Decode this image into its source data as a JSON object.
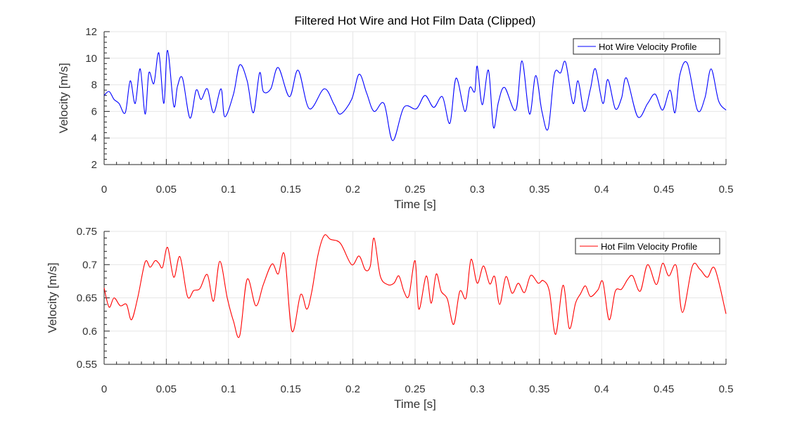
{
  "figure": {
    "title": "Filtered Hot Wire and Hot Film Data (Clipped)"
  },
  "chart_data": [
    {
      "type": "line",
      "title": "Filtered Hot Wire and Hot Film Data (Clipped)",
      "xlabel": "Time [s]",
      "ylabel": "Velocity [m/s]",
      "xlim": [
        0,
        0.5
      ],
      "ylim": [
        2,
        12
      ],
      "xticks": [
        0,
        0.05,
        0.1,
        0.15,
        0.2,
        0.25,
        0.3,
        0.35,
        0.4,
        0.45,
        0.5
      ],
      "xtick_labels": [
        "0",
        "0.05",
        "0.1",
        "0.15",
        "0.2",
        "0.25",
        "0.3",
        "0.35",
        "0.4",
        "0.45",
        "0.5"
      ],
      "yticks": [
        2,
        4,
        6,
        8,
        10,
        12
      ],
      "ytick_labels": [
        "2",
        "4",
        "6",
        "8",
        "10",
        "12"
      ],
      "grid": true,
      "legend_position": "top-right",
      "series": [
        {
          "name": "Hot Wire Velocity Profile",
          "color": "#0000ff",
          "x": [
            0,
            0.004,
            0.008,
            0.012,
            0.017,
            0.021,
            0.025,
            0.029,
            0.033,
            0.036,
            0.04,
            0.044,
            0.048,
            0.051,
            0.056,
            0.059,
            0.063,
            0.069,
            0.074,
            0.078,
            0.083,
            0.088,
            0.094,
            0.097,
            0.104,
            0.109,
            0.115,
            0.12,
            0.125,
            0.128,
            0.134,
            0.14,
            0.149,
            0.156,
            0.165,
            0.177,
            0.185,
            0.19,
            0.199,
            0.205,
            0.211,
            0.217,
            0.225,
            0.232,
            0.241,
            0.251,
            0.258,
            0.265,
            0.272,
            0.278,
            0.283,
            0.29,
            0.294,
            0.298,
            0.3,
            0.304,
            0.309,
            0.313,
            0.317,
            0.322,
            0.331,
            0.336,
            0.342,
            0.347,
            0.352,
            0.357,
            0.362,
            0.367,
            0.371,
            0.377,
            0.381,
            0.386,
            0.391,
            0.395,
            0.401,
            0.405,
            0.411,
            0.416,
            0.42,
            0.429,
            0.437,
            0.443,
            0.449,
            0.455,
            0.459,
            0.463,
            0.469,
            0.477,
            0.483,
            0.488,
            0.494,
            0.5
          ],
          "y": [
            7.2,
            7.5,
            6.9,
            6.6,
            5.9,
            8.3,
            6.6,
            9.2,
            5.8,
            8.9,
            8.1,
            10.4,
            6.6,
            10.6,
            6.4,
            7.9,
            8.5,
            5.5,
            7.6,
            6.9,
            7.7,
            5.9,
            7.7,
            5.6,
            7.3,
            9.5,
            8.3,
            5.9,
            8.9,
            7.5,
            7.7,
            9.3,
            7.1,
            9.1,
            6.2,
            7.7,
            6.5,
            5.8,
            6.9,
            8.8,
            7.4,
            6.0,
            6.6,
            3.8,
            6.3,
            6.2,
            7.2,
            6.3,
            7.1,
            5.1,
            8.5,
            6.0,
            7.8,
            7.5,
            9.4,
            6.5,
            9.1,
            4.8,
            6.7,
            7.8,
            6.1,
            9.8,
            5.8,
            8.7,
            6.0,
            4.7,
            8.8,
            8.9,
            9.7,
            6.6,
            8.3,
            6.0,
            7.7,
            9.2,
            6.6,
            8.4,
            6.2,
            7.0,
            8.5,
            5.6,
            6.6,
            7.3,
            6.1,
            7.6,
            5.9,
            8.8,
            9.6,
            6.1,
            7.0,
            9.2,
            6.8,
            6.1
          ],
          "x_order_note": ""
        }
      ]
    },
    {
      "type": "line",
      "title": "",
      "xlabel": "Time [s]",
      "ylabel": "Velocity [m/s]",
      "xlim": [
        0,
        0.5
      ],
      "ylim": [
        0.55,
        0.75
      ],
      "xticks": [
        0,
        0.05,
        0.1,
        0.15,
        0.2,
        0.25,
        0.3,
        0.35,
        0.4,
        0.45,
        0.5
      ],
      "xtick_labels": [
        "0",
        "0.05",
        "0.1",
        "0.15",
        "0.2",
        "0.25",
        "0.3",
        "0.35",
        "0.4",
        "0.45",
        "0.5"
      ],
      "yticks": [
        0.55,
        0.6,
        0.65,
        0.7,
        0.75
      ],
      "ytick_labels": [
        "0.55",
        "0.6",
        "0.65",
        "0.7",
        "0.75"
      ],
      "grid": true,
      "legend_position": "top-right",
      "series": [
        {
          "name": "Hot Film Velocity Profile",
          "color": "#ff0000",
          "x": [
            0,
            0.004,
            0.008,
            0.013,
            0.018,
            0.022,
            0.027,
            0.033,
            0.037,
            0.041,
            0.044,
            0.047,
            0.051,
            0.056,
            0.061,
            0.067,
            0.072,
            0.077,
            0.083,
            0.088,
            0.093,
            0.099,
            0.104,
            0.109,
            0.115,
            0.122,
            0.128,
            0.135,
            0.14,
            0.145,
            0.151,
            0.158,
            0.163,
            0.167,
            0.172,
            0.177,
            0.182,
            0.19,
            0.199,
            0.205,
            0.21,
            0.214,
            0.217,
            0.222,
            0.228,
            0.233,
            0.237,
            0.241,
            0.245,
            0.25,
            0.253,
            0.259,
            0.263,
            0.267,
            0.271,
            0.276,
            0.281,
            0.286,
            0.291,
            0.295,
            0.3,
            0.305,
            0.31,
            0.314,
            0.318,
            0.323,
            0.328,
            0.333,
            0.338,
            0.343,
            0.349,
            0.353,
            0.358,
            0.363,
            0.369,
            0.374,
            0.379,
            0.383,
            0.387,
            0.391,
            0.397,
            0.401,
            0.406,
            0.411,
            0.416,
            0.421,
            0.425,
            0.431,
            0.437,
            0.444,
            0.449,
            0.454,
            0.46,
            0.465,
            0.473,
            0.479,
            0.485,
            0.491,
            0.5
          ],
          "y": [
            0.665,
            0.636,
            0.65,
            0.638,
            0.64,
            0.617,
            0.65,
            0.704,
            0.696,
            0.706,
            0.702,
            0.696,
            0.726,
            0.681,
            0.712,
            0.652,
            0.661,
            0.664,
            0.685,
            0.645,
            0.705,
            0.65,
            0.615,
            0.593,
            0.678,
            0.638,
            0.67,
            0.701,
            0.686,
            0.715,
            0.6,
            0.655,
            0.633,
            0.66,
            0.715,
            0.744,
            0.738,
            0.732,
            0.7,
            0.713,
            0.692,
            0.698,
            0.74,
            0.683,
            0.67,
            0.672,
            0.683,
            0.66,
            0.653,
            0.706,
            0.633,
            0.683,
            0.642,
            0.686,
            0.66,
            0.648,
            0.61,
            0.66,
            0.65,
            0.708,
            0.672,
            0.698,
            0.671,
            0.682,
            0.64,
            0.682,
            0.657,
            0.672,
            0.658,
            0.684,
            0.672,
            0.676,
            0.66,
            0.595,
            0.669,
            0.604,
            0.642,
            0.656,
            0.668,
            0.652,
            0.662,
            0.674,
            0.617,
            0.66,
            0.663,
            0.678,
            0.683,
            0.66,
            0.7,
            0.67,
            0.702,
            0.683,
            0.698,
            0.628,
            0.698,
            0.693,
            0.681,
            0.694,
            0.626
          ],
          "x_order_note": ""
        }
      ]
    }
  ]
}
